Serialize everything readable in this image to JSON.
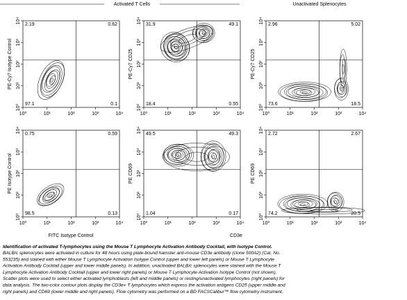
{
  "headers": [
    "Activated T Cells",
    "Unactivated Splenocytes"
  ],
  "axis_ticks": [
    "10⁰",
    "10¹",
    "10²",
    "10³",
    "10⁴"
  ],
  "panels": [
    {
      "y_label": "PE-Cy7 Isotype Control",
      "quadrants": [
        "2.19",
        "0.62",
        "97.1",
        "0.1"
      ]
    },
    {
      "y_label": "PE-Cy7 CD25",
      "quadrants": [
        "31.9",
        "49.1",
        "18.4",
        "0.55"
      ]
    },
    {
      "y_label": "PE-Cy7 CD25",
      "quadrants": [
        "2.96",
        "5.02",
        "73.6",
        "18.5"
      ]
    },
    {
      "y_label": "PE Isotype Control",
      "quadrants": [
        "0.75",
        "0.59",
        "98.5",
        "0.13"
      ]
    },
    {
      "y_label": "PE CD69",
      "quadrants": [
        "49.5",
        "49.3",
        "1.04",
        "0.17"
      ]
    },
    {
      "y_label": "PE CD69",
      "quadrants": [
        "2.72",
        "2.67",
        "74.2",
        "20.5"
      ]
    }
  ],
  "x_labels": [
    "FITC Isotype Control",
    "CD3e"
  ],
  "caption": {
    "title": "Identification of activated T-lymphocytes using the Mouse T Lymphocyte Activation Antibody Cocktail, with Isotype Control.",
    "lines": [
      "BALB/c splenocytes were activated in culture for 48 hours using plate-bound hamster anti-mouse CD3e antibody (clone 500A2) (Cat. No.",
      "553235) and stained with either Mouse T Lymphocyte Activation Isotype Control (upper and lower left panels) or Mouse T Lymphocyte",
      "Activation Antibody Cocktail (upper and lower middle panels). In addition, unactivated BALB/c splenocytes were stained with the Mouse T",
      "Lymphocyte Activation Antibody Cocktail (upper and lower right panels) or Mouse T Lymphocyte Activation Isotype Control (not shown).",
      "Scatter plots were used to select either activated lymphoblasts (left and middle panels) or resting/unactivated lymphocytes (right panels) for",
      "data analysis.  The two-color contour plots display the CD3e+ T lymphocytes which express the activation antigens CD25 (upper middle and",
      "right panels) and CD69 (lower middle and right panels).  Flow cytometry was performed on a BD FACSCalibur™ flow cytometry instrument."
    ]
  }
}
